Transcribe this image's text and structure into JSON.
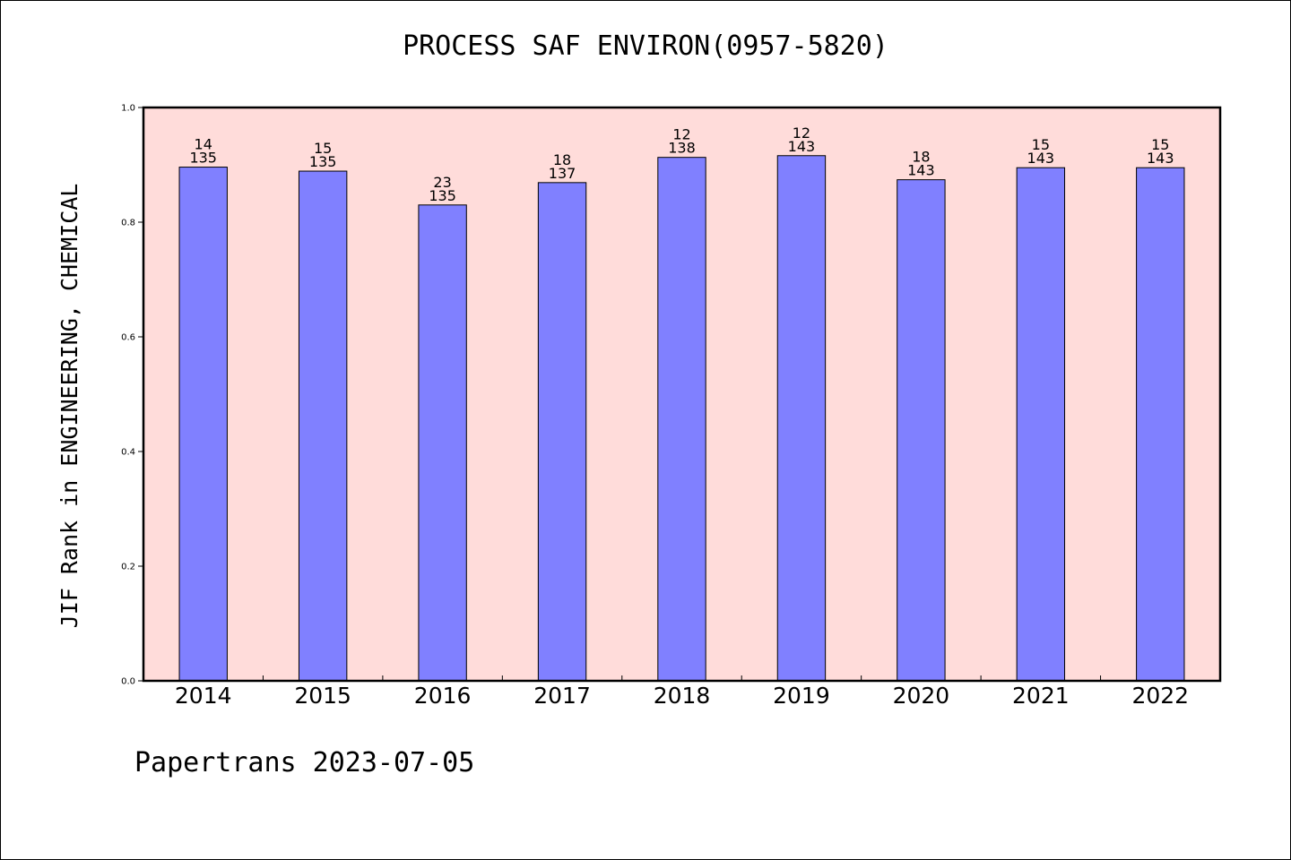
{
  "chart_data": {
    "type": "bar",
    "title": "PROCESS SAF ENVIRON(0957-5820)",
    "ylabel": "JIF Rank in ENGINEERING, CHEMICAL",
    "xlabel": "",
    "ylim": [
      0,
      1.0
    ],
    "yticks": [
      "0.0",
      "0.2",
      "0.4",
      "0.6",
      "0.8",
      "1.0"
    ],
    "categories": [
      "2014",
      "2015",
      "2016",
      "2017",
      "2018",
      "2019",
      "2020",
      "2021",
      "2022"
    ],
    "values": [
      0.896,
      0.889,
      0.83,
      0.869,
      0.913,
      0.916,
      0.874,
      0.895,
      0.895
    ],
    "ranks": [
      "14",
      "15",
      "23",
      "18",
      "12",
      "12",
      "18",
      "15",
      "15"
    ],
    "totals": [
      "135",
      "135",
      "135",
      "137",
      "138",
      "143",
      "143",
      "143",
      "143"
    ],
    "plot_background": "#FFDCDA",
    "bar_color": "#8080FF",
    "grid": false,
    "legend": "none"
  },
  "footer": "Papertrans 2023-07-05"
}
